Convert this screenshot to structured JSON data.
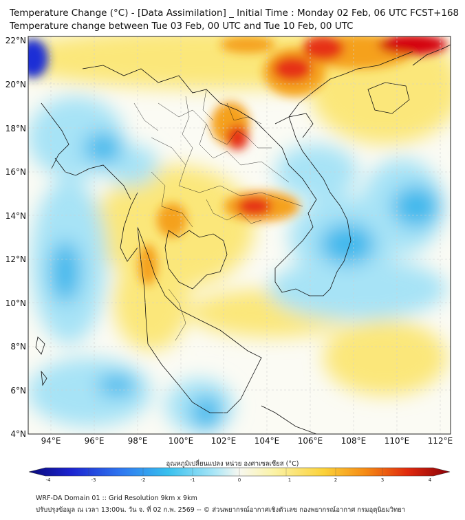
{
  "header": {
    "title_line1": "Temperature Change (°C) - [Data Assimilation] _ Initial Time : Monday 02 Feb, 06 UTC FCST+168",
    "title_line2": "Temperature change between Tue 03 Feb, 00 UTC and Tue 10 Feb, 00 UTC"
  },
  "map": {
    "lat_labels": [
      "22°N",
      "20°N",
      "18°N",
      "16°N",
      "14°N",
      "12°N",
      "10°N",
      "8°N",
      "6°N",
      "4°N"
    ],
    "lon_labels": [
      "94°E",
      "96°E",
      "98°E",
      "100°E",
      "102°E",
      "104°E",
      "106°E",
      "108°E",
      "110°E",
      "112°E"
    ],
    "colors": {
      "cold_strong": "#1f2fd6",
      "cold": "#3fb8ec",
      "cool": "#a7e3f6",
      "neutral": "#fbfbf4",
      "warm": "#fbe77a",
      "warm_strong": "#f5a11c",
      "hot": "#e63312",
      "hot_strong": "#d4000a"
    }
  },
  "colorbar": {
    "label": "อุณหภูมิเปลี่ยนแปลง หน่วย องศาเซลเซียส (°C)",
    "ticks": [
      "-4",
      "-3",
      "-2",
      "-1",
      "0",
      "1",
      "2",
      "3",
      "4"
    ]
  },
  "footer": {
    "line1": "WRF-DA Domain 01 :: Grid Resolution 9km x 9km",
    "line2": "ปรับปรุงข้อมูล ณ เวลา 13:00น. วัน จ. ที่ 02 ก.พ. 2569 -- © ส่วนพยากรณ์อากาศเชิงตัวเลข กองพยากรณ์อากาศ กรมอุตุนิยมวิทยา"
  }
}
